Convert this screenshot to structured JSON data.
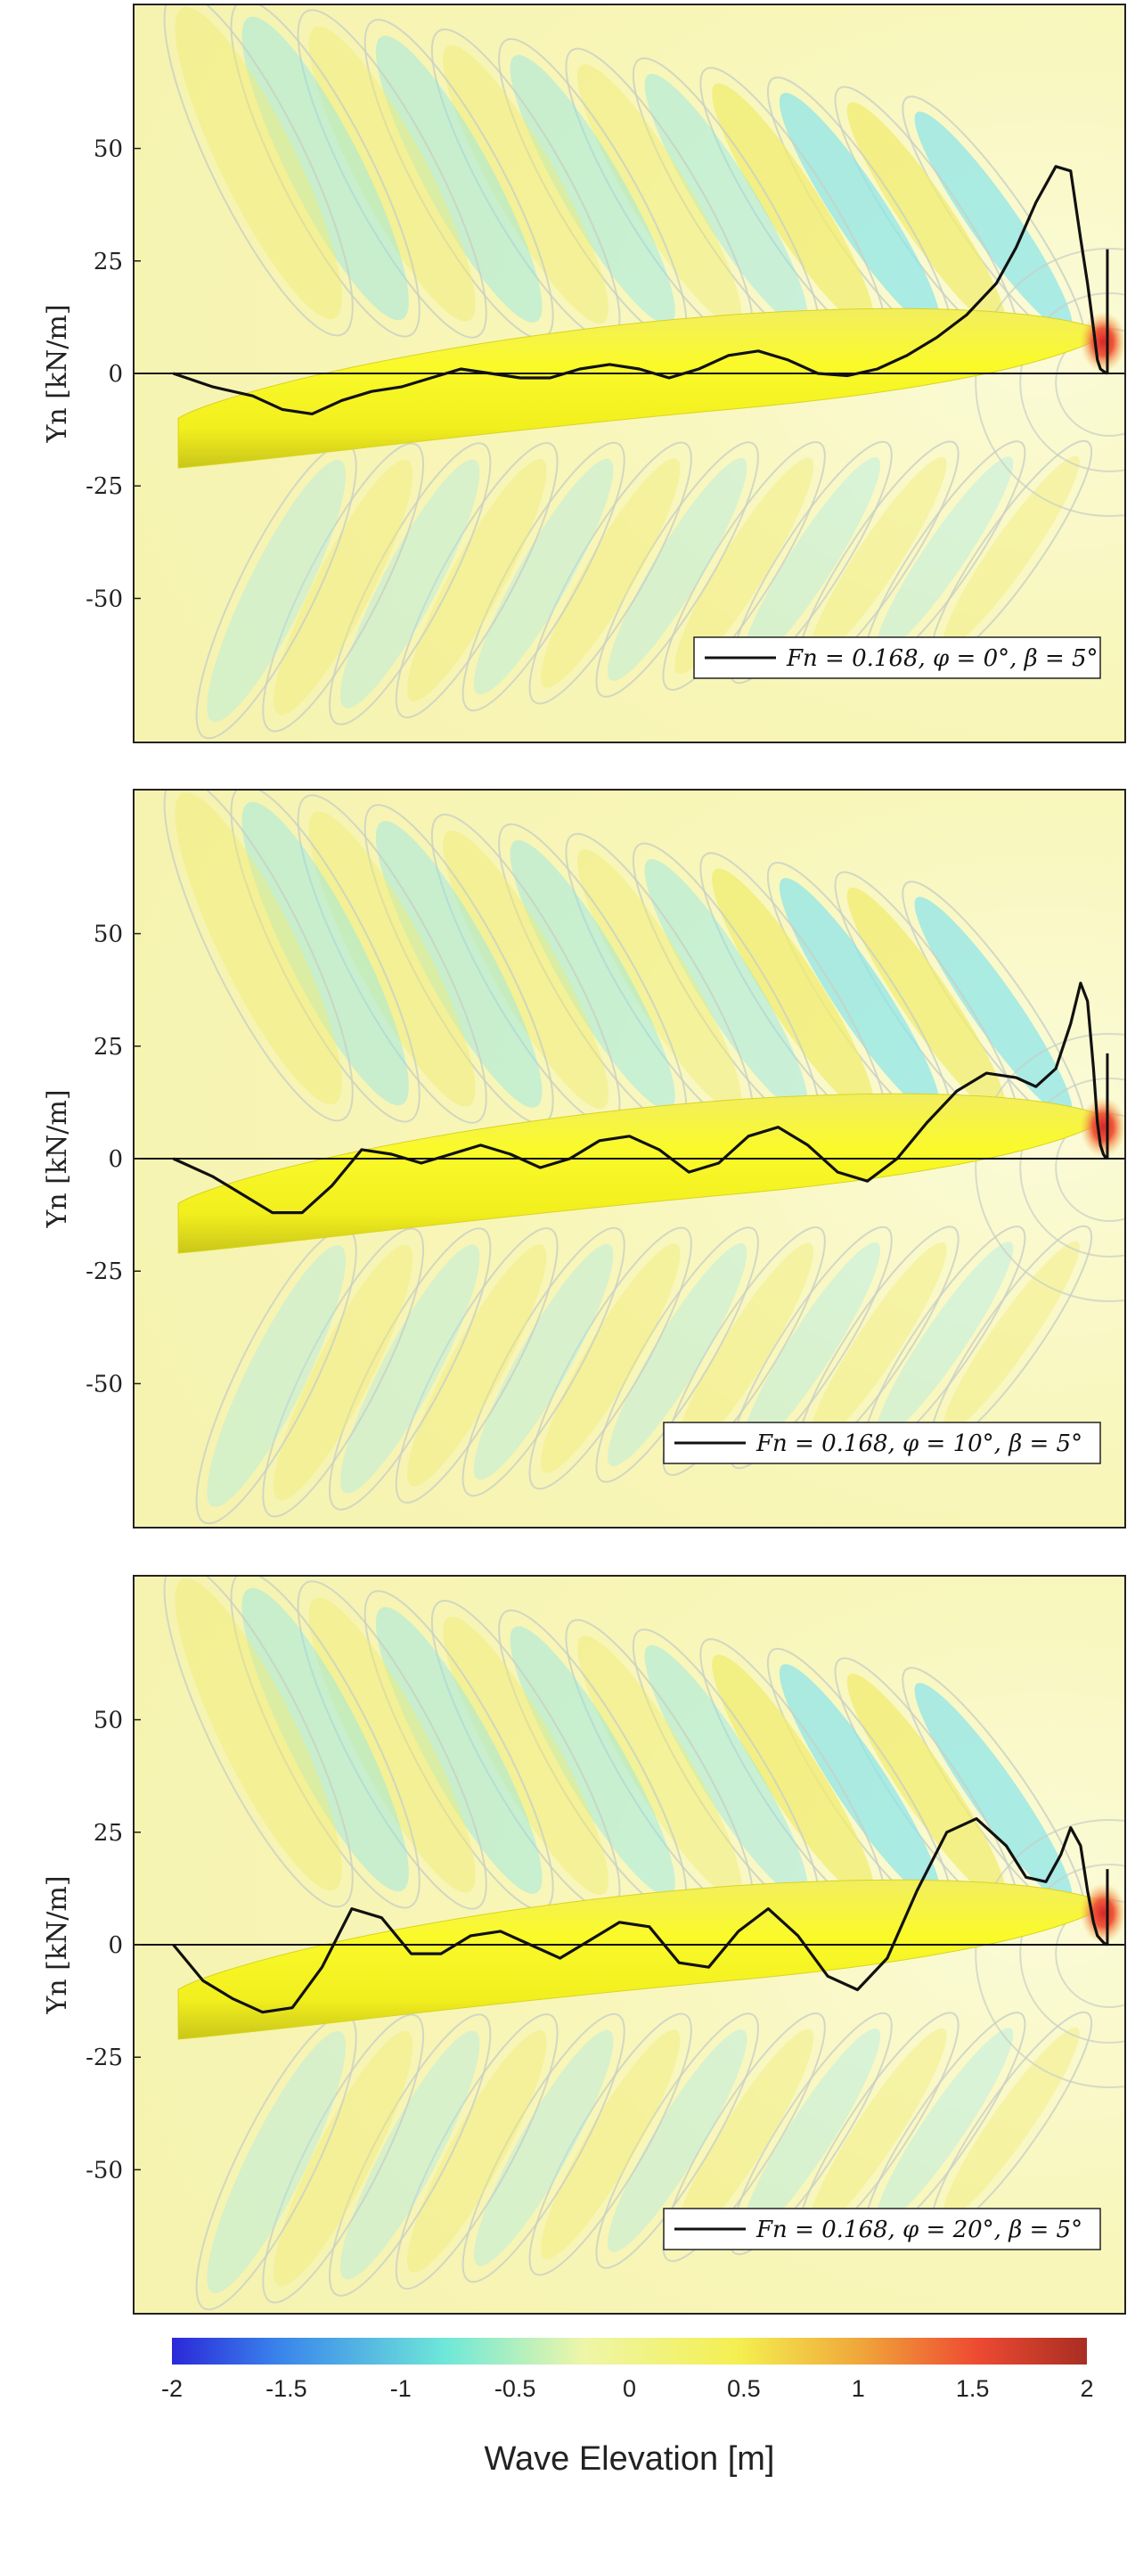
{
  "chart_data": [
    {
      "type": "line",
      "ylabel": "Yn [kN/m]",
      "yticks": [
        50,
        25,
        0,
        -25,
        -50
      ],
      "ylim": [
        -82,
        82
      ],
      "xlim": [
        0,
        1
      ],
      "legend": "top-right",
      "background": "wave elevation contour map with hull overlay",
      "series": [
        {
          "name": "Fn = 0.168,  φ = 0°,  β = 5°",
          "x": [
            0.04,
            0.08,
            0.12,
            0.15,
            0.18,
            0.21,
            0.24,
            0.27,
            0.3,
            0.33,
            0.36,
            0.39,
            0.42,
            0.45,
            0.48,
            0.51,
            0.54,
            0.57,
            0.6,
            0.63,
            0.66,
            0.69,
            0.72,
            0.75,
            0.78,
            0.81,
            0.84,
            0.87,
            0.89,
            0.91,
            0.93,
            0.945,
            0.955,
            0.962,
            0.968,
            0.972,
            0.975,
            0.978,
            0.98,
            0.982
          ],
          "y": [
            0,
            -3,
            -5,
            -8,
            -9,
            -6,
            -4,
            -3,
            -1,
            1,
            0,
            -1,
            -1,
            1,
            2,
            1,
            -1,
            1,
            4,
            5,
            3,
            0,
            -0.5,
            1,
            4,
            8,
            13,
            20,
            28,
            38,
            46,
            45,
            30,
            20,
            10,
            3,
            1,
            0.5,
            0.2,
            0
          ]
        }
      ]
    },
    {
      "type": "line",
      "ylabel": "Yn [kN/m]",
      "yticks": [
        50,
        25,
        0,
        -25,
        -50
      ],
      "ylim": [
        -82,
        82
      ],
      "xlim": [
        0,
        1
      ],
      "legend": "top-right",
      "background": "wave elevation contour map with hull overlay",
      "series": [
        {
          "name": "Fn = 0.168,  φ = 10°,  β = 5°",
          "x": [
            0.04,
            0.08,
            0.11,
            0.14,
            0.17,
            0.2,
            0.23,
            0.26,
            0.29,
            0.32,
            0.35,
            0.38,
            0.41,
            0.44,
            0.47,
            0.5,
            0.53,
            0.56,
            0.59,
            0.62,
            0.65,
            0.68,
            0.71,
            0.74,
            0.77,
            0.8,
            0.83,
            0.86,
            0.89,
            0.91,
            0.93,
            0.945,
            0.955,
            0.962,
            0.968,
            0.972,
            0.975,
            0.978,
            0.98,
            0.982
          ],
          "y": [
            0,
            -4,
            -8,
            -12,
            -12,
            -6,
            2,
            1,
            -1,
            1,
            3,
            1,
            -2,
            0,
            4,
            5,
            2,
            -3,
            -1,
            5,
            7,
            3,
            -3,
            -5,
            0,
            8,
            15,
            19,
            18,
            16,
            20,
            30,
            39,
            35,
            20,
            8,
            3,
            1,
            0.3,
            0
          ]
        }
      ]
    },
    {
      "type": "line",
      "ylabel": "Yn [kN/m]",
      "yticks": [
        50,
        25,
        0,
        -25,
        -50
      ],
      "ylim": [
        -82,
        82
      ],
      "xlim": [
        0,
        1
      ],
      "legend": "top-right",
      "background": "wave elevation contour map with hull overlay",
      "series": [
        {
          "name": "Fn = 0.168,  φ = 20°,  β = 5°",
          "x": [
            0.04,
            0.07,
            0.1,
            0.13,
            0.16,
            0.19,
            0.22,
            0.25,
            0.28,
            0.31,
            0.34,
            0.37,
            0.4,
            0.43,
            0.46,
            0.49,
            0.52,
            0.55,
            0.58,
            0.61,
            0.64,
            0.67,
            0.7,
            0.73,
            0.76,
            0.79,
            0.82,
            0.85,
            0.88,
            0.9,
            0.92,
            0.935,
            0.945,
            0.955,
            0.962,
            0.968,
            0.972,
            0.976,
            0.979,
            0.982
          ],
          "y": [
            0,
            -8,
            -12,
            -15,
            -14,
            -5,
            8,
            6,
            -2,
            -2,
            2,
            3,
            0,
            -3,
            1,
            5,
            4,
            -4,
            -5,
            3,
            8,
            2,
            -7,
            -10,
            -3,
            12,
            25,
            28,
            22,
            15,
            14,
            20,
            26,
            22,
            12,
            5,
            2,
            1,
            0.3,
            0
          ]
        }
      ]
    }
  ],
  "colorbar": {
    "title": "Wave Elevation [m]",
    "ticks": [
      "-2",
      "-1.5",
      "-1",
      "-0.5",
      "0",
      "0.5",
      "1",
      "1.5",
      "2"
    ],
    "colors": [
      "#2b28d8",
      "#3a86ec",
      "#6fe8d8",
      "#f4f6a0",
      "#f4ef50",
      "#f0a83a",
      "#ee4a32",
      "#a82e22"
    ]
  }
}
